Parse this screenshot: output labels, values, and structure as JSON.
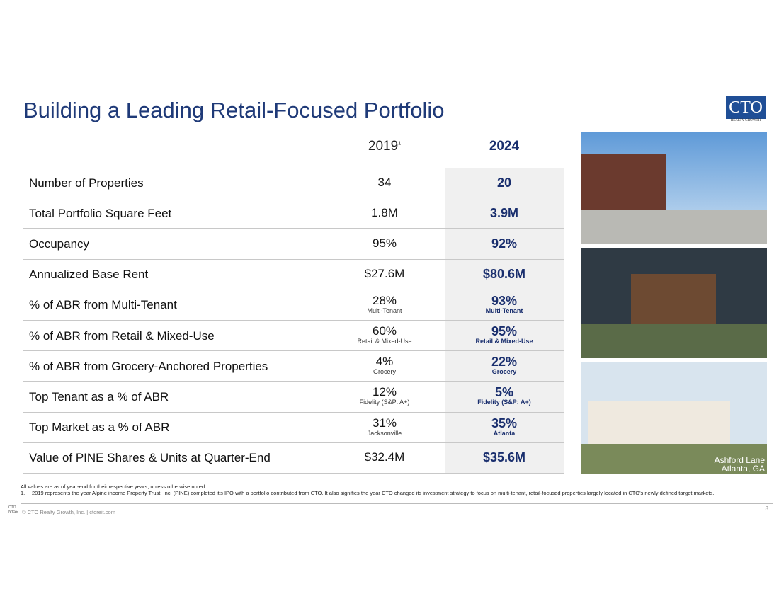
{
  "header": {
    "title": "Building a Leading Retail-Focused Portfolio"
  },
  "logo": {
    "name": "CTO",
    "tagline": "REALTY GROWTH"
  },
  "table": {
    "columns": [
      {
        "label": "2019",
        "note": "1"
      },
      {
        "label": "2024"
      }
    ],
    "rows": [
      {
        "label": "Number of Properties",
        "cells": [
          {
            "value": "34"
          },
          {
            "value": "20"
          }
        ]
      },
      {
        "label": "Total Portfolio Square Feet",
        "cells": [
          {
            "value": "1.8M"
          },
          {
            "value": "3.9M"
          }
        ]
      },
      {
        "label": "Occupancy",
        "cells": [
          {
            "value": "95%"
          },
          {
            "value": "92%"
          }
        ]
      },
      {
        "label": "Annualized Base Rent",
        "cells": [
          {
            "value": "$27.6M"
          },
          {
            "value": "$80.6M"
          }
        ]
      },
      {
        "label": "% of ABR from Multi-Tenant",
        "cells": [
          {
            "value": "28%",
            "note": "Multi-Tenant"
          },
          {
            "value": "93%",
            "note": "Multi-Tenant"
          }
        ]
      },
      {
        "label": "% of ABR from Retail & Mixed-Use",
        "cells": [
          {
            "value": "60%",
            "note": "Retail & Mixed-Use"
          },
          {
            "value": "95%",
            "note": "Retail & Mixed-Use"
          }
        ]
      },
      {
        "label": "% of ABR from Grocery-Anchored Properties",
        "cells": [
          {
            "value": "4%",
            "note": "Grocery"
          },
          {
            "value": "22%",
            "note": "Grocery"
          }
        ]
      },
      {
        "label": "Top Tenant as a % of ABR",
        "cells": [
          {
            "value": "12%",
            "note": "Fidelity (S&P: A+)"
          },
          {
            "value": "5%",
            "note": "Fidelity (S&P: A+)"
          }
        ]
      },
      {
        "label": "Top Market as a % of ABR",
        "cells": [
          {
            "value": "31%",
            "note": "Jacksonville"
          },
          {
            "value": "35%",
            "note": "Atlanta"
          }
        ]
      },
      {
        "label": "Value of PINE Shares & Units at Quarter-End",
        "cells": [
          {
            "value": "$32.4M"
          },
          {
            "value": "$35.6M"
          }
        ]
      }
    ]
  },
  "photo_caption": [
    "Ashford Lane",
    "Atlanta, GA"
  ],
  "footnotes": {
    "general": "All values are as of year-end for their respective years, unless otherwise noted.",
    "items": [
      {
        "marker": "1.",
        "text": "2019 represents the year Alpine income Property Trust, Inc. (PINE) completed it's IPO with a portfolio contributed from CTO.  It also signifies the year CTO changed its investment strategy to focus on multi-tenant, retail-focused properties largely located in CTO's newly defined target markets."
      }
    ]
  },
  "footer": {
    "logo": [
      "CTO",
      "NYSE"
    ],
    "copyright": "© CTO Realty Growth, Inc. | ctoreit.com",
    "page": "8"
  }
}
